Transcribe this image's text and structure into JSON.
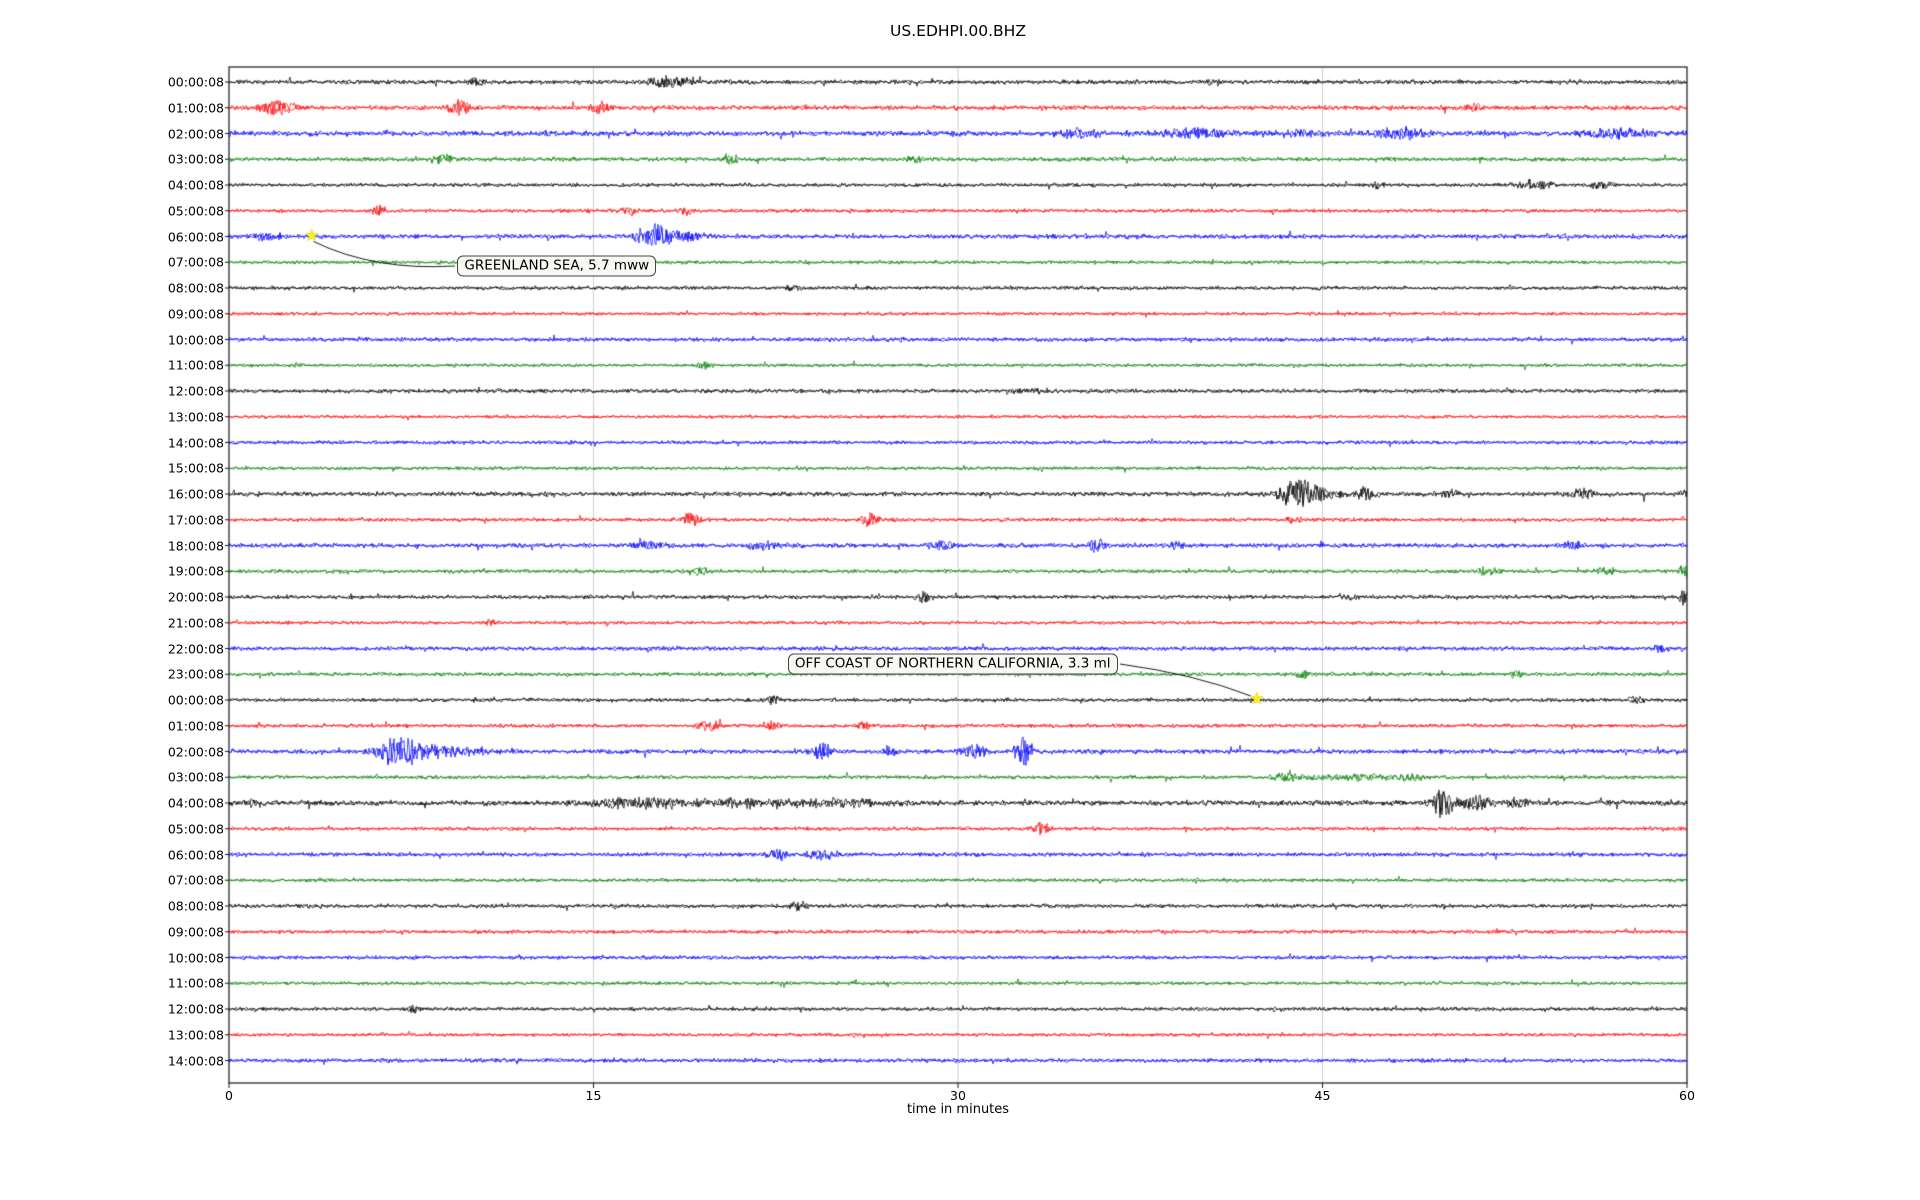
{
  "title": "US.EDHPI.00.BHZ",
  "chart_data": {
    "type": "line",
    "subtype": "helicorder-seismogram",
    "station": "US.EDHPI.00.BHZ",
    "xlabel": "time in minutes",
    "xlim": [
      0,
      60
    ],
    "x_ticks": [
      0,
      15,
      30,
      45,
      60
    ],
    "grid_minutes": [
      15,
      30,
      45
    ],
    "grid_color": "#c3c3c3",
    "background": "#ffffff",
    "color_cycle": [
      "#000000",
      "#ff0000",
      "#0000ff",
      "#008000"
    ],
    "event_marker_color": "#f8ef1c",
    "rows": [
      {
        "label": "00:00:08",
        "color": "#000000",
        "amp": 2.4,
        "bursts": [
          [
            10.2,
            0.4,
            4
          ],
          [
            18.1,
            1.0,
            6
          ],
          [
            40.5,
            0.4,
            3
          ]
        ]
      },
      {
        "label": "01:00:08",
        "color": "#ff0000",
        "amp": 2.4,
        "bursts": [
          [
            2.0,
            0.9,
            8
          ],
          [
            9.5,
            0.4,
            9
          ],
          [
            15.3,
            0.4,
            7
          ],
          [
            51.2,
            0.4,
            4
          ]
        ]
      },
      {
        "label": "02:00:08",
        "color": "#0000ff",
        "amp": 2.8,
        "bursts": [
          [
            35.0,
            0.9,
            5
          ],
          [
            39.8,
            1.5,
            6
          ],
          [
            44.0,
            0.8,
            4
          ],
          [
            48.3,
            1.2,
            6
          ],
          [
            57.0,
            1.5,
            5
          ]
        ]
      },
      {
        "label": "03:00:08",
        "color": "#008000",
        "amp": 2.2,
        "bursts": [
          [
            8.8,
            0.5,
            5
          ],
          [
            20.6,
            0.3,
            6
          ],
          [
            28.2,
            0.4,
            4
          ]
        ]
      },
      {
        "label": "04:00:08",
        "color": "#000000",
        "amp": 2.0,
        "bursts": [
          [
            47.3,
            0.3,
            4
          ],
          [
            53.6,
            0.9,
            5
          ],
          [
            56.5,
            0.5,
            4
          ]
        ]
      },
      {
        "label": "05:00:08",
        "color": "#ff0000",
        "amp": 2.0,
        "bursts": [
          [
            6.2,
            0.3,
            6
          ],
          [
            16.4,
            0.4,
            5
          ],
          [
            18.8,
            0.3,
            5
          ]
        ]
      },
      {
        "label": "06:00:08",
        "color": "#0000ff",
        "amp": 2.4,
        "bursts": [
          [
            1.5,
            0.8,
            4
          ],
          [
            16.8,
            0.4,
            5
          ],
          [
            17.6,
            0.5,
            14
          ],
          [
            18.4,
            1.2,
            6
          ]
        ]
      },
      {
        "label": "07:00:08",
        "color": "#008000",
        "amp": 1.9,
        "bursts": []
      },
      {
        "label": "08:00:08",
        "color": "#000000",
        "amp": 2.0,
        "bursts": [
          [
            23.2,
            0.5,
            3
          ]
        ]
      },
      {
        "label": "09:00:08",
        "color": "#ff0000",
        "amp": 1.8,
        "bursts": []
      },
      {
        "label": "10:00:08",
        "color": "#0000ff",
        "amp": 2.2,
        "bursts": []
      },
      {
        "label": "11:00:08",
        "color": "#008000",
        "amp": 1.8,
        "bursts": [
          [
            19.5,
            0.3,
            4
          ]
        ]
      },
      {
        "label": "12:00:08",
        "color": "#000000",
        "amp": 2.2,
        "bursts": [
          [
            33.0,
            0.7,
            3
          ]
        ]
      },
      {
        "label": "13:00:08",
        "color": "#ff0000",
        "amp": 1.8,
        "bursts": []
      },
      {
        "label": "14:00:08",
        "color": "#0000ff",
        "amp": 2.0,
        "bursts": []
      },
      {
        "label": "15:00:08",
        "color": "#008000",
        "amp": 1.8,
        "bursts": []
      },
      {
        "label": "16:00:08",
        "color": "#000000",
        "amp": 2.4,
        "bursts": [
          [
            43.9,
            0.7,
            16
          ],
          [
            44.8,
            1.2,
            7
          ],
          [
            46.8,
            0.5,
            6
          ],
          [
            50.3,
            0.4,
            4
          ],
          [
            55.6,
            0.7,
            5
          ],
          [
            60.0,
            0.3,
            5
          ]
        ]
      },
      {
        "label": "17:00:08",
        "color": "#ff0000",
        "amp": 2.0,
        "bursts": [
          [
            19.0,
            0.4,
            8
          ],
          [
            26.4,
            0.4,
            7
          ],
          [
            43.8,
            0.3,
            4
          ]
        ]
      },
      {
        "label": "18:00:08",
        "color": "#0000ff",
        "amp": 2.4,
        "bursts": [
          [
            17.2,
            0.8,
            4
          ],
          [
            22.0,
            0.8,
            4
          ],
          [
            29.3,
            0.6,
            5
          ],
          [
            35.7,
            0.4,
            7
          ],
          [
            39.0,
            0.4,
            5
          ],
          [
            55.2,
            0.5,
            5
          ]
        ]
      },
      {
        "label": "19:00:08",
        "color": "#008000",
        "amp": 2.0,
        "bursts": [
          [
            19.4,
            0.4,
            4
          ],
          [
            51.8,
            0.6,
            4
          ],
          [
            56.6,
            0.4,
            5
          ],
          [
            59.9,
            0.2,
            11
          ]
        ]
      },
      {
        "label": "20:00:08",
        "color": "#000000",
        "amp": 2.1,
        "bursts": [
          [
            28.6,
            0.3,
            6
          ],
          [
            46.0,
            0.4,
            3
          ],
          [
            59.9,
            0.2,
            9
          ]
        ]
      },
      {
        "label": "21:00:08",
        "color": "#ff0000",
        "amp": 1.8,
        "bursts": [
          [
            10.8,
            0.3,
            4
          ]
        ]
      },
      {
        "label": "22:00:08",
        "color": "#0000ff",
        "amp": 2.2,
        "bursts": [
          [
            58.9,
            0.4,
            5
          ]
        ]
      },
      {
        "label": "23:00:08",
        "color": "#008000",
        "amp": 2.0,
        "bursts": [
          [
            44.2,
            0.4,
            4
          ],
          [
            53.0,
            0.3,
            4
          ]
        ]
      },
      {
        "label": "00:00:08",
        "color": "#000000",
        "amp": 2.0,
        "bursts": [
          [
            22.4,
            0.3,
            5
          ],
          [
            57.9,
            0.3,
            5
          ]
        ]
      },
      {
        "label": "01:00:08",
        "color": "#ff0000",
        "amp": 2.0,
        "bursts": [
          [
            19.8,
            0.5,
            6
          ],
          [
            22.3,
            0.4,
            5
          ],
          [
            26.1,
            0.3,
            4
          ]
        ]
      },
      {
        "label": "02:00:08",
        "color": "#0000ff",
        "amp": 2.4,
        "bursts": [
          [
            6.9,
            1.0,
            13
          ],
          [
            8.3,
            2.0,
            6
          ],
          [
            24.4,
            0.5,
            9
          ],
          [
            27.2,
            0.4,
            5
          ],
          [
            30.7,
            0.6,
            7
          ],
          [
            32.7,
            0.4,
            14
          ]
        ]
      },
      {
        "label": "03:00:08",
        "color": "#008000",
        "amp": 2.0,
        "bursts": [
          [
            43.6,
            0.8,
            5
          ],
          [
            46.2,
            1.6,
            4
          ],
          [
            48.5,
            0.8,
            4
          ]
        ]
      },
      {
        "label": "04:00:08",
        "color": "#000000",
        "amp": 2.8,
        "bursts": [
          [
            1.0,
            0.4,
            4
          ],
          [
            17.0,
            2.5,
            5
          ],
          [
            21.0,
            2.0,
            4
          ],
          [
            25.0,
            2.5,
            4
          ],
          [
            49.9,
            0.5,
            15
          ],
          [
            51.2,
            0.8,
            7
          ],
          [
            53.0,
            0.6,
            5
          ]
        ]
      },
      {
        "label": "05:00:08",
        "color": "#ff0000",
        "amp": 2.0,
        "bursts": [
          [
            33.4,
            0.4,
            7
          ]
        ]
      },
      {
        "label": "06:00:08",
        "color": "#0000ff",
        "amp": 2.2,
        "bursts": [
          [
            22.6,
            0.5,
            6
          ],
          [
            24.4,
            0.6,
            6
          ]
        ]
      },
      {
        "label": "07:00:08",
        "color": "#008000",
        "amp": 1.9,
        "bursts": []
      },
      {
        "label": "08:00:08",
        "color": "#000000",
        "amp": 2.1,
        "bursts": [
          [
            23.4,
            0.5,
            4
          ]
        ]
      },
      {
        "label": "09:00:08",
        "color": "#ff0000",
        "amp": 2.0,
        "bursts": []
      },
      {
        "label": "10:00:08",
        "color": "#0000ff",
        "amp": 2.0,
        "bursts": []
      },
      {
        "label": "11:00:08",
        "color": "#008000",
        "amp": 1.8,
        "bursts": []
      },
      {
        "label": "12:00:08",
        "color": "#000000",
        "amp": 2.0,
        "bursts": [
          [
            7.6,
            0.3,
            4
          ]
        ]
      },
      {
        "label": "13:00:08",
        "color": "#ff0000",
        "amp": 1.8,
        "bursts": []
      },
      {
        "label": "14:00:08",
        "color": "#0000ff",
        "amp": 2.2,
        "bursts": []
      }
    ],
    "events": [
      {
        "text": "GREENLAND SEA, 5.7 mww",
        "star_minute": 3.4,
        "star_row": 6,
        "label_minute": 9.4,
        "label_row": 7.15
      },
      {
        "text": "OFF COAST OF NORTHERN CALIFORNIA, 3.3 ml",
        "star_minute": 42.3,
        "star_row": 24,
        "label_minute": 23.0,
        "label_row": 22.6
      }
    ]
  }
}
